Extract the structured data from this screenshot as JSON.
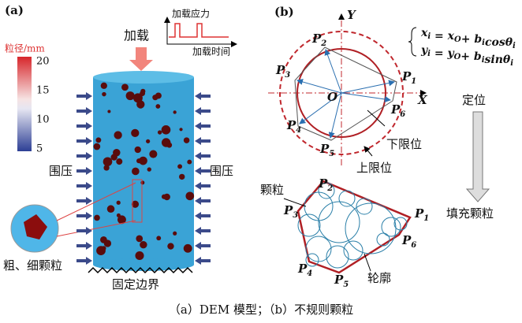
{
  "panel_a": {
    "label": "(a)",
    "colorbar": {
      "title": "粒径/mm",
      "ticks": [
        20,
        15,
        10,
        5
      ]
    },
    "load_graph": {
      "y_label": "加载应力",
      "x_label": "加载时间"
    },
    "load": "加载",
    "confining_left": "围压",
    "confining_right": "围压",
    "particles": "粗、细颗粒",
    "boundary": "固定边界"
  },
  "panel_b": {
    "label": "(b)",
    "y_axis": "Y",
    "x_axis": "X",
    "origin": "O",
    "points": [
      {
        "letter": "P",
        "sub": "1"
      },
      {
        "letter": "P",
        "sub": "2"
      },
      {
        "letter": "P",
        "sub": "3"
      },
      {
        "letter": "P",
        "sub": "4"
      },
      {
        "letter": "P",
        "sub": "5"
      },
      {
        "letter": "P",
        "sub": "6"
      }
    ],
    "equations": [
      [
        {
          "t": "x",
          "sub": "i"
        },
        {
          "t": " = "
        },
        {
          "t": "x",
          "sub": "O"
        },
        {
          "t": "+ "
        },
        {
          "t": "b",
          "sub": "i"
        },
        {
          "t": "cos"
        },
        {
          "t": "θ",
          "sub": "i"
        }
      ],
      [
        {
          "t": "y",
          "sub": "i"
        },
        {
          "t": " = "
        },
        {
          "t": "y",
          "sub": "O"
        },
        {
          "t": "+ "
        },
        {
          "t": "b",
          "sub": "i"
        },
        {
          "t": "sin"
        },
        {
          "t": "θ",
          "sub": "i"
        }
      ]
    ],
    "lower_limit": "下限位",
    "upper_limit": "上限位",
    "particle": "颗粒",
    "contour": "轮廓",
    "position": "定位",
    "fill": "填充颗粒",
    "points_lower": [
      {
        "letter": "P",
        "sub": "1"
      },
      {
        "letter": "P",
        "sub": "2"
      },
      {
        "letter": "P",
        "sub": "3"
      },
      {
        "letter": "P",
        "sub": "4"
      },
      {
        "letter": "P",
        "sub": "5"
      },
      {
        "letter": "P",
        "sub": "6"
      }
    ]
  },
  "caption": "（a）DEM 模型；（b）不规则颗粒"
}
